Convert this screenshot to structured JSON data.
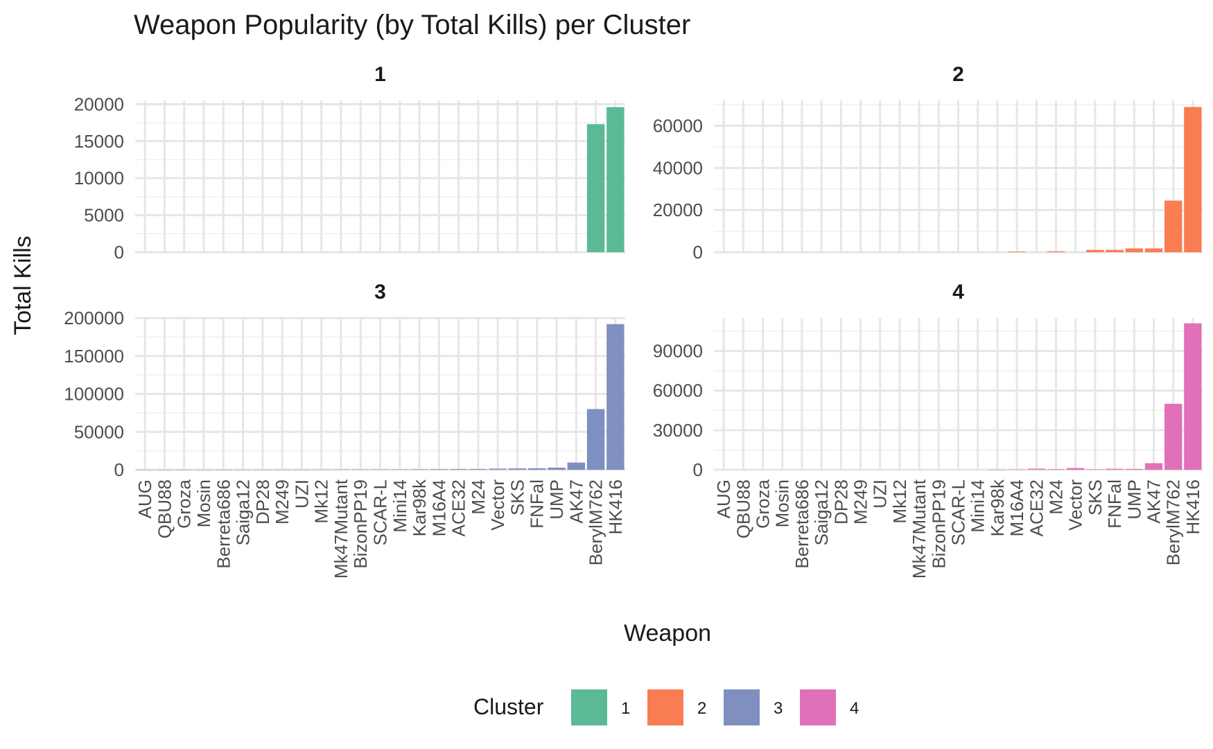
{
  "chart_data": {
    "type": "bar",
    "title": "Weapon Popularity (by Total Kills) per Cluster",
    "xlabel": "Weapon",
    "ylabel": "Total Kills",
    "legend": {
      "title": "Cluster",
      "position": "bottom"
    },
    "grid": true,
    "categories": [
      "AUG",
      "QBU88",
      "Groza",
      "Mosin",
      "Berreta686",
      "Saiga12",
      "DP28",
      "M249",
      "UZI",
      "Mk12",
      "Mk47Mutant",
      "BizonPP19",
      "SCAR-L",
      "Mini14",
      "Kar98k",
      "M16A4",
      "ACE32",
      "M24",
      "Vector",
      "SKS",
      "FNFal",
      "UMP",
      "AK47",
      "BerylM762",
      "HK416"
    ],
    "facets": [
      {
        "name": "1",
        "color": "#5bba94",
        "ylim": [
          0,
          20500
        ],
        "yticks": [
          0,
          5000,
          10000,
          15000,
          20000
        ],
        "values": [
          0,
          0,
          0,
          0,
          0,
          0,
          0,
          0,
          0,
          0,
          0,
          0,
          0,
          0,
          0,
          0,
          0,
          0,
          0,
          0,
          0,
          0,
          0,
          17300,
          19600
        ]
      },
      {
        "name": "2",
        "color": "#f97c52",
        "ylim": [
          0,
          72000
        ],
        "yticks": [
          0,
          20000,
          40000,
          60000
        ],
        "values": [
          0,
          0,
          0,
          0,
          0,
          0,
          0,
          0,
          0,
          0,
          0,
          0,
          0,
          0,
          0,
          300,
          0,
          400,
          0,
          1100,
          1100,
          1800,
          1800,
          24500,
          68900
        ]
      },
      {
        "name": "3",
        "color": "#7f8fc0",
        "ylim": [
          0,
          200000
        ],
        "yticks": [
          0,
          50000,
          100000,
          150000,
          200000
        ],
        "values": [
          50,
          60,
          80,
          90,
          100,
          120,
          150,
          200,
          250,
          300,
          350,
          400,
          450,
          500,
          600,
          800,
          900,
          1000,
          1500,
          1800,
          2000,
          2800,
          9500,
          80000,
          192000
        ]
      },
      {
        "name": "4",
        "color": "#e070b8",
        "ylim": [
          0,
          115000
        ],
        "yticks": [
          0,
          30000,
          60000,
          90000
        ],
        "values": [
          0,
          0,
          0,
          0,
          0,
          0,
          0,
          0,
          0,
          0,
          0,
          0,
          0,
          0,
          100,
          200,
          800,
          400,
          1300,
          300,
          700,
          600,
          5000,
          50000,
          111000
        ]
      }
    ]
  }
}
